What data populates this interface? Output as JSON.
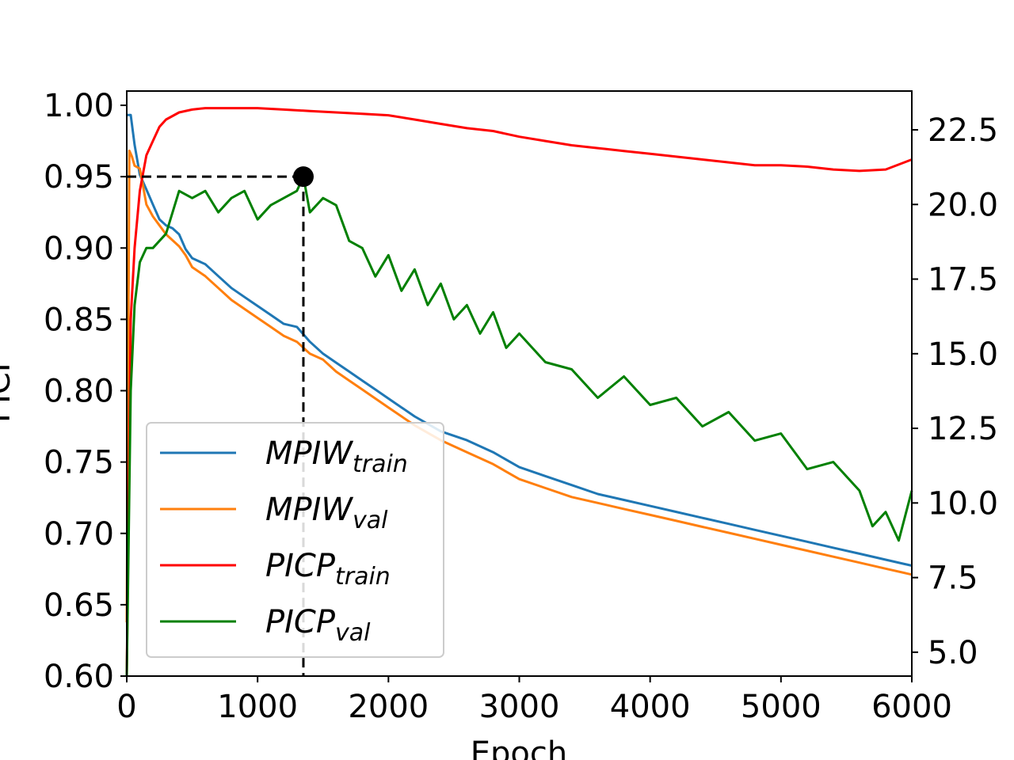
{
  "chart_data": {
    "type": "line",
    "title": "",
    "xlabel": "Epoch",
    "ylabel_left": "PICP",
    "ylabel_right": "",
    "xlim": [
      0,
      6000
    ],
    "ylim_left": [
      0.6,
      1.01
    ],
    "ylim_right": [
      4.2,
      23.8
    ],
    "x_ticks": [
      0,
      1000,
      2000,
      3000,
      4000,
      5000,
      6000
    ],
    "x_tick_labels": [
      "0",
      "1000",
      "2000",
      "3000",
      "4000",
      "5000",
      "6000"
    ],
    "y_left_ticks": [
      0.6,
      0.65,
      0.7,
      0.75,
      0.8,
      0.85,
      0.9,
      0.95,
      1.0
    ],
    "y_left_tick_labels": [
      "0.60",
      "0.65",
      "0.70",
      "0.75",
      "0.80",
      "0.85",
      "0.90",
      "0.95",
      "1.00"
    ],
    "y_right_ticks": [
      5.0,
      7.5,
      10.0,
      12.5,
      15.0,
      17.5,
      20.0,
      22.5
    ],
    "y_right_tick_labels": [
      "5.0",
      "7.5",
      "10.0",
      "12.5",
      "15.0",
      "17.5",
      "20.0",
      "22.5"
    ],
    "legend_position": "lower-left",
    "series": [
      {
        "name": "MPIW_train",
        "legend_main": "MPIW",
        "legend_sub": "train",
        "axis": "right",
        "color": "#1f77b4",
        "x": [
          0,
          30,
          60,
          100,
          150,
          200,
          250,
          300,
          350,
          400,
          450,
          500,
          600,
          700,
          800,
          900,
          1000,
          1100,
          1200,
          1300,
          1400,
          1500,
          1600,
          1700,
          1800,
          1900,
          2000,
          2200,
          2400,
          2600,
          2800,
          3000,
          3200,
          3400,
          3600,
          3800,
          4000,
          4200,
          4400,
          4600,
          4800,
          5000,
          5200,
          5400,
          5600,
          5800,
          6000
        ],
        "y": [
          23.0,
          23.0,
          22.0,
          21.0,
          20.5,
          20.0,
          19.5,
          19.3,
          19.2,
          19.0,
          18.5,
          18.2,
          18.0,
          17.6,
          17.2,
          16.9,
          16.6,
          16.3,
          16.0,
          15.9,
          15.4,
          15.0,
          14.7,
          14.4,
          14.1,
          13.8,
          13.5,
          12.9,
          12.4,
          12.1,
          11.7,
          11.2,
          10.9,
          10.6,
          10.3,
          10.1,
          9.9,
          9.7,
          9.5,
          9.3,
          9.1,
          8.9,
          8.7,
          8.5,
          8.3,
          8.1,
          7.9
        ]
      },
      {
        "name": "MPIW_val",
        "legend_main": "MPIW",
        "legend_sub": "val",
        "axis": "right",
        "color": "#ff7f0e",
        "x": [
          0,
          20,
          40,
          60,
          100,
          150,
          200,
          250,
          300,
          350,
          400,
          450,
          500,
          600,
          700,
          800,
          900,
          1000,
          1100,
          1200,
          1300,
          1400,
          1500,
          1600,
          1700,
          1800,
          1900,
          2000,
          2200,
          2400,
          2600,
          2800,
          3000,
          3200,
          3400,
          3600,
          3800,
          4000,
          4200,
          4400,
          4600,
          4800,
          5000,
          5200,
          5400,
          5600,
          5800,
          6000
        ],
        "y": [
          6.0,
          21.8,
          21.6,
          21.3,
          21.2,
          20.0,
          19.6,
          19.3,
          19.0,
          18.8,
          18.6,
          18.3,
          17.9,
          17.6,
          17.2,
          16.8,
          16.5,
          16.2,
          15.9,
          15.6,
          15.4,
          15.0,
          14.8,
          14.4,
          14.1,
          13.8,
          13.5,
          13.2,
          12.6,
          12.1,
          11.7,
          11.3,
          10.8,
          10.5,
          10.2,
          10.0,
          9.8,
          9.6,
          9.4,
          9.2,
          9.0,
          8.8,
          8.6,
          8.4,
          8.2,
          8.0,
          7.8,
          7.6
        ]
      },
      {
        "name": "PICP_train",
        "legend_main": "PICP",
        "legend_sub": "train",
        "axis": "left",
        "color": "#ff0000",
        "x": [
          0,
          30,
          60,
          100,
          150,
          200,
          250,
          300,
          400,
          500,
          600,
          800,
          1000,
          1200,
          1400,
          1600,
          1800,
          2000,
          2200,
          2400,
          2600,
          2800,
          3000,
          3200,
          3400,
          3600,
          3800,
          4000,
          4200,
          4400,
          4600,
          4800,
          5000,
          5200,
          5400,
          5600,
          5800,
          6000
        ],
        "y": [
          0.6,
          0.85,
          0.9,
          0.94,
          0.965,
          0.975,
          0.985,
          0.99,
          0.995,
          0.997,
          0.998,
          0.998,
          0.998,
          0.997,
          0.996,
          0.995,
          0.994,
          0.993,
          0.99,
          0.987,
          0.984,
          0.982,
          0.978,
          0.975,
          0.972,
          0.97,
          0.968,
          0.966,
          0.964,
          0.962,
          0.96,
          0.958,
          0.958,
          0.957,
          0.955,
          0.954,
          0.955,
          0.962
        ]
      },
      {
        "name": "PICP_val",
        "legend_main": "PICP",
        "legend_sub": "val",
        "axis": "left",
        "color": "#008000",
        "x": [
          0,
          30,
          60,
          100,
          150,
          200,
          300,
          400,
          500,
          600,
          700,
          800,
          900,
          1000,
          1100,
          1200,
          1300,
          1350,
          1400,
          1500,
          1600,
          1700,
          1800,
          1900,
          2000,
          2100,
          2200,
          2300,
          2400,
          2500,
          2600,
          2700,
          2800,
          2900,
          3000,
          3200,
          3400,
          3600,
          3800,
          4000,
          4200,
          4400,
          4600,
          4800,
          5000,
          5200,
          5400,
          5600,
          5700,
          5800,
          5900,
          6000
        ],
        "y": [
          0.6,
          0.8,
          0.86,
          0.89,
          0.9,
          0.9,
          0.91,
          0.94,
          0.935,
          0.94,
          0.925,
          0.935,
          0.94,
          0.92,
          0.93,
          0.935,
          0.94,
          0.95,
          0.925,
          0.935,
          0.93,
          0.905,
          0.9,
          0.88,
          0.895,
          0.87,
          0.885,
          0.86,
          0.875,
          0.85,
          0.86,
          0.84,
          0.855,
          0.83,
          0.84,
          0.82,
          0.815,
          0.795,
          0.81,
          0.79,
          0.795,
          0.775,
          0.785,
          0.765,
          0.77,
          0.745,
          0.75,
          0.73,
          0.705,
          0.715,
          0.695,
          0.73
        ]
      }
    ],
    "annotation": {
      "label": "",
      "x": 1350,
      "y": 0.95
    }
  }
}
